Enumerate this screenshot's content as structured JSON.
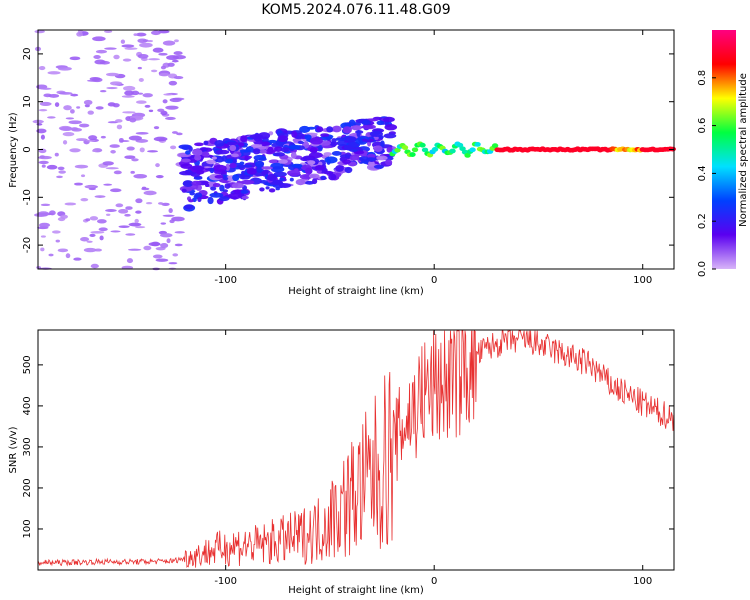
{
  "title": "KOM5.2024.076.11.48.G09",
  "chart_data": [
    {
      "type": "heatmap",
      "xlabel": "Height of straight line (km)",
      "ylabel": "Frequency (Hz)",
      "xlim": [
        -190,
        115
      ],
      "ylim": [
        -25,
        25
      ],
      "x_ticks": [
        -100,
        0,
        100
      ],
      "y_ticks": [
        -20,
        -10,
        0,
        10,
        20
      ],
      "grid": false,
      "colorbar": {
        "label": "Normalized spectral amplitude",
        "ticks": [
          "0.0",
          "0.2",
          "0.4",
          "0.6",
          "0.8"
        ],
        "range": [
          0,
          1
        ],
        "colormap": [
          "#d8b4f8",
          "#5a00f0",
          "#0040ff",
          "#00e0ff",
          "#00ff40",
          "#ffff00",
          "#ff0000",
          "#ff0080"
        ]
      },
      "features": [
        {
          "region": "scattered weak noise",
          "x": [
            -190,
            -120
          ],
          "freq_spread": [
            -25,
            25
          ],
          "amplitude": 0.05
        },
        {
          "region": "broadened patches",
          "x": [
            -120,
            -20
          ],
          "freq_spread": [
            -12,
            6
          ],
          "amplitude": 0.12
        },
        {
          "region": "narrow carrier line",
          "x": [
            -20,
            115
          ],
          "freq_center": 0,
          "amplitude": 0.9
        }
      ]
    },
    {
      "type": "line",
      "xlabel": "Height of straight line (km)",
      "ylabel": "SNR (v/v)",
      "xlim": [
        -190,
        115
      ],
      "ylim": [
        0,
        585
      ],
      "x_ticks": [
        -100,
        0,
        100
      ],
      "y_ticks": [
        100,
        200,
        300,
        400,
        500
      ],
      "grid": false,
      "series": [
        {
          "color": "#e83030",
          "x": [
            -190,
            -180,
            -160,
            -140,
            -125,
            -115,
            -105,
            -95,
            -85,
            -75,
            -65,
            -55,
            -45,
            -35,
            -25,
            -15,
            -5,
            5,
            15,
            25,
            35,
            45,
            55,
            65,
            75,
            85,
            95,
            105,
            115
          ],
          "y": [
            18,
            18,
            20,
            20,
            22,
            35,
            50,
            60,
            60,
            70,
            80,
            100,
            150,
            200,
            250,
            350,
            430,
            460,
            500,
            540,
            560,
            560,
            540,
            520,
            500,
            450,
            420,
            390,
            370
          ]
        }
      ]
    }
  ]
}
